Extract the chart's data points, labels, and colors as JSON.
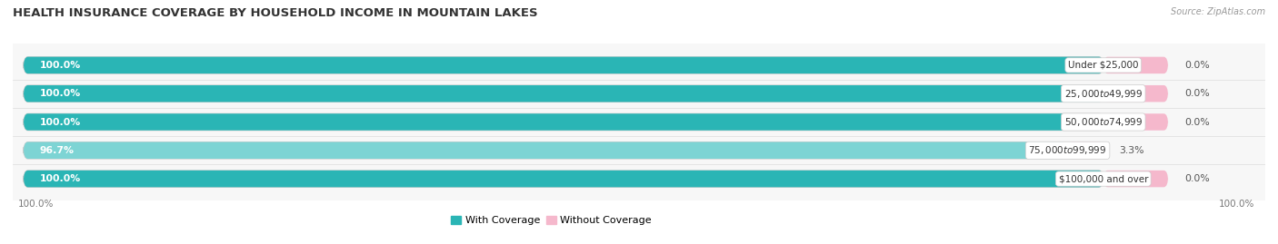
{
  "title": "HEALTH INSURANCE COVERAGE BY HOUSEHOLD INCOME IN MOUNTAIN LAKES",
  "source": "Source: ZipAtlas.com",
  "categories": [
    "Under $25,000",
    "$25,000 to $49,999",
    "$50,000 to $74,999",
    "$75,000 to $99,999",
    "$100,000 and over"
  ],
  "with_coverage": [
    100.0,
    100.0,
    100.0,
    96.7,
    100.0
  ],
  "without_coverage": [
    0.0,
    0.0,
    0.0,
    3.3,
    0.0
  ],
  "color_with": "#2ab5b5",
  "color_with_light": "#7dd4d4",
  "color_without_0": "#f5b8cc",
  "color_without_nonzero": "#f06090",
  "color_bg_bar": "#e8e8e8",
  "bar_height": 0.58,
  "figsize": [
    14.06,
    2.69
  ],
  "dpi": 100,
  "background_color": "#ffffff",
  "grid_color": "#dddddd",
  "title_fontsize": 9.5,
  "label_fontsize": 7.8,
  "tick_fontsize": 7.5,
  "legend_fontsize": 8,
  "source_fontsize": 7
}
